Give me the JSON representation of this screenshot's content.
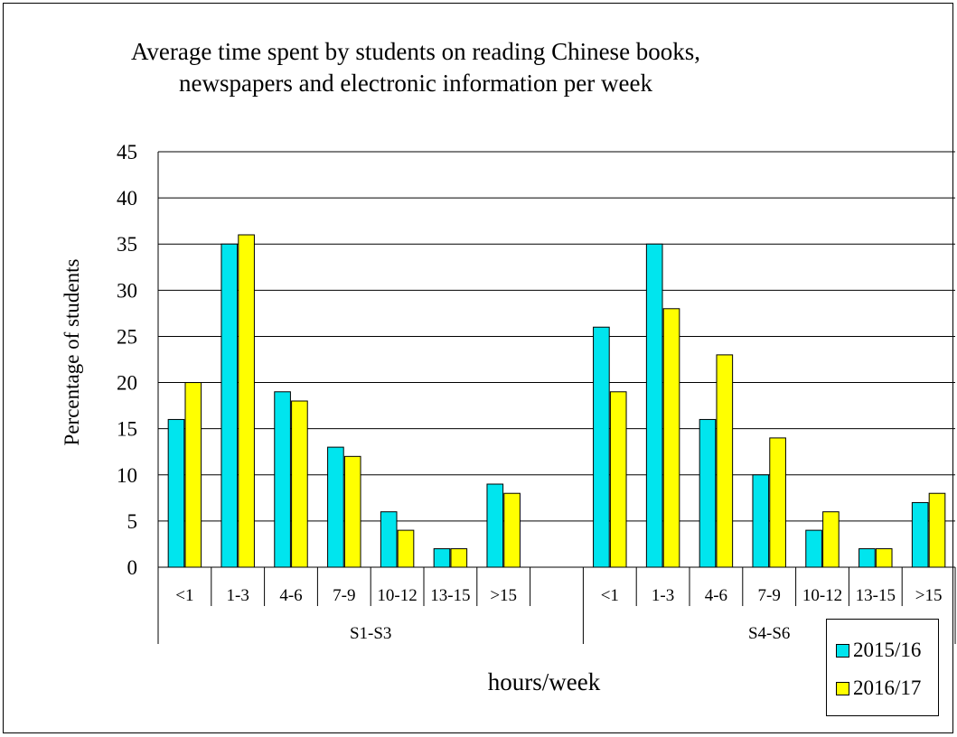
{
  "chart_data": {
    "type": "bar",
    "title": [
      "Average time spent by students on reading Chinese books,",
      "newspapers and electronic information per week"
    ],
    "xlabel": "hours/week",
    "ylabel": "Percentage of students",
    "ylim": [
      0,
      45
    ],
    "yticks": [
      0,
      5,
      10,
      15,
      20,
      25,
      30,
      35,
      40,
      45
    ],
    "grid": true,
    "legend_position": "bottom-right",
    "groups": [
      {
        "name": "S1-S3",
        "categories": [
          "<1",
          "1-3",
          "4-6",
          "7-9",
          "10-12",
          "13-15",
          ">15",
          ""
        ],
        "series": [
          {
            "name": "2015/16",
            "values": [
              16,
              35,
              19,
              13,
              6,
              2,
              9,
              null
            ]
          },
          {
            "name": "2016/17",
            "values": [
              20,
              36,
              18,
              12,
              4,
              2,
              8,
              null
            ]
          }
        ]
      },
      {
        "name": "S4-S6",
        "categories": [
          "<1",
          "1-3",
          "4-6",
          "7-9",
          "10-12",
          "13-15",
          ">15"
        ],
        "series": [
          {
            "name": "2015/16",
            "values": [
              26,
              35,
              16,
              10,
              4,
              2,
              7
            ]
          },
          {
            "name": "2016/17",
            "values": [
              19,
              28,
              23,
              14,
              6,
              2,
              8
            ]
          }
        ]
      }
    ],
    "colors": {
      "2015/16": "#00e5ee",
      "2016/17": "#ffff00"
    }
  }
}
